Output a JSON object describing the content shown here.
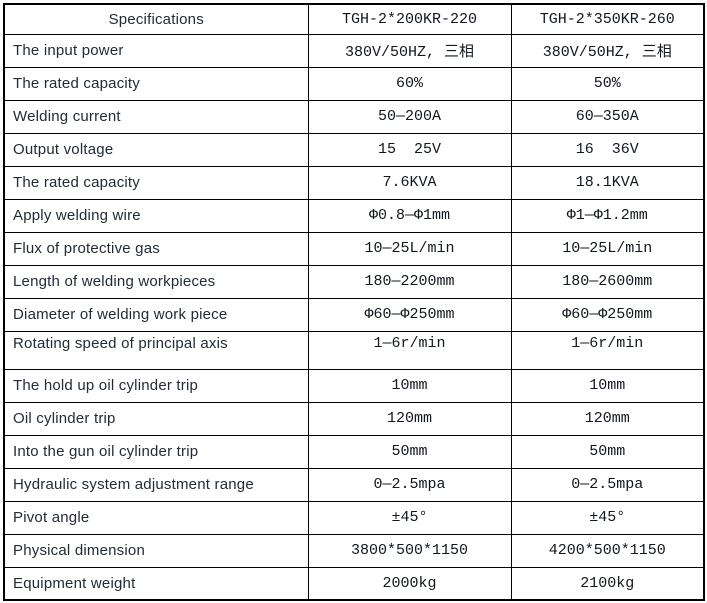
{
  "colors": {
    "border": "#000000",
    "label_text": "#222b36",
    "value_text": "#12181f",
    "background": "#ffffff"
  },
  "table": {
    "headers": [
      "Specifications",
      "TGH-2*200KR-220",
      "TGH-2*350KR-260"
    ],
    "rows": [
      {
        "spec": "The input power",
        "model1": "380V/50HZ, 三相",
        "model2": "380V/50HZ, 三相"
      },
      {
        "spec": "The rated capacity",
        "model1": "60%",
        "model2": "50%"
      },
      {
        "spec": "Welding current",
        "model1": "50—200A",
        "model2": "60—350A"
      },
      {
        "spec": "Output voltage",
        "model1": "15  25V",
        "model2": "16  36V"
      },
      {
        "spec": "The rated capacity",
        "model1": "7.6KVA",
        "model2": "18.1KVA"
      },
      {
        "spec": "Apply welding wire",
        "model1": "Φ0.8—Φ1mm",
        "model2": "Φ1—Φ1.2mm"
      },
      {
        "spec": "Flux of protective gas",
        "model1": "10—25L/min",
        "model2": "10—25L/min"
      },
      {
        "spec": "Length of welding workpieces",
        "model1": "180—2200mm",
        "model2": "180—2600mm"
      },
      {
        "spec": "Diameter of welding work piece",
        "model1": "Φ60—Φ250mm",
        "model2": "Φ60—Φ250mm"
      },
      {
        "spec": "Rotating speed of principal axis",
        "model1": "1—6r/min",
        "model2": "1—6r/min"
      },
      {
        "spec": "The hold up oil cylinder trip",
        "model1": "10mm",
        "model2": "10mm"
      },
      {
        "spec": "Oil cylinder trip",
        "model1": "120mm",
        "model2": "120mm"
      },
      {
        "spec": "Into the gun oil cylinder trip",
        "model1": "50mm",
        "model2": "50mm"
      },
      {
        "spec": "Hydraulic system adjustment range",
        "model1": "0—2.5mpa",
        "model2": "0—2.5mpa"
      },
      {
        "spec": "Pivot angle",
        "model1": "±45°",
        "model2": "±45°"
      },
      {
        "spec": "Physical dimension",
        "model1": "3800*500*1150",
        "model2": "4200*500*1150"
      },
      {
        "spec": "Equipment weight",
        "model1": "2000kg",
        "model2": "2100kg"
      }
    ]
  }
}
